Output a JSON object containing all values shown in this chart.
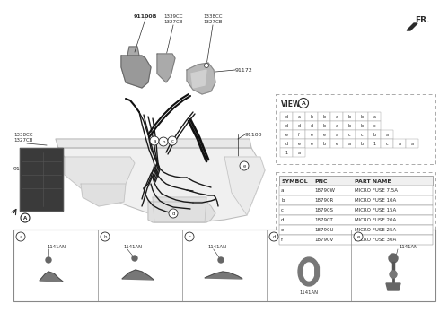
{
  "bg_color": "#ffffff",
  "line_color": "#2a2a2a",
  "gray_color": "#888888",
  "light_gray": "#cccccc",
  "dashed_color": "#aaaaaa",
  "fr_label": "FR.",
  "view_label": "VIEW",
  "view_circle": "A",
  "view_grid_rows": [
    [
      "d",
      "a",
      "b",
      "b",
      "a",
      "b",
      "b",
      "a"
    ],
    [
      "d",
      "d",
      "d",
      "b",
      "a",
      "b",
      "b",
      "c"
    ],
    [
      "e",
      "f",
      "e",
      "e",
      "a",
      "c",
      "c",
      "b",
      "a"
    ],
    [
      "d",
      "e",
      "e",
      "b",
      "e",
      "a",
      "b",
      "1",
      "c",
      "a",
      "a"
    ],
    [
      "1",
      "a"
    ]
  ],
  "symbol_headers": [
    "SYMBOL",
    "PNC",
    "PART NAME"
  ],
  "symbol_rows": [
    [
      "a",
      "18790W",
      "MICRO FUSE 7.5A"
    ],
    [
      "b",
      "18790R",
      "MICRO FUSE 10A"
    ],
    [
      "c",
      "18790S",
      "MICRO FUSE 15A"
    ],
    [
      "d",
      "18790T",
      "MICRO FUSE 20A"
    ],
    [
      "e",
      "18790U",
      "MICRO FUSE 25A"
    ],
    [
      "f",
      "18790V",
      "MICRO FUSE 30A"
    ]
  ],
  "bottom_panels": [
    "a",
    "b",
    "c",
    "d",
    "e"
  ],
  "part_1141AN": "1141AN",
  "part_91100B": "91100B",
  "part_1339CC": "1339CC",
  "part_1327CB": "1327CB",
  "part_1338CC": "1338CC",
  "part_91172": "91172",
  "part_91100": "91100",
  "part_91188": "91188"
}
